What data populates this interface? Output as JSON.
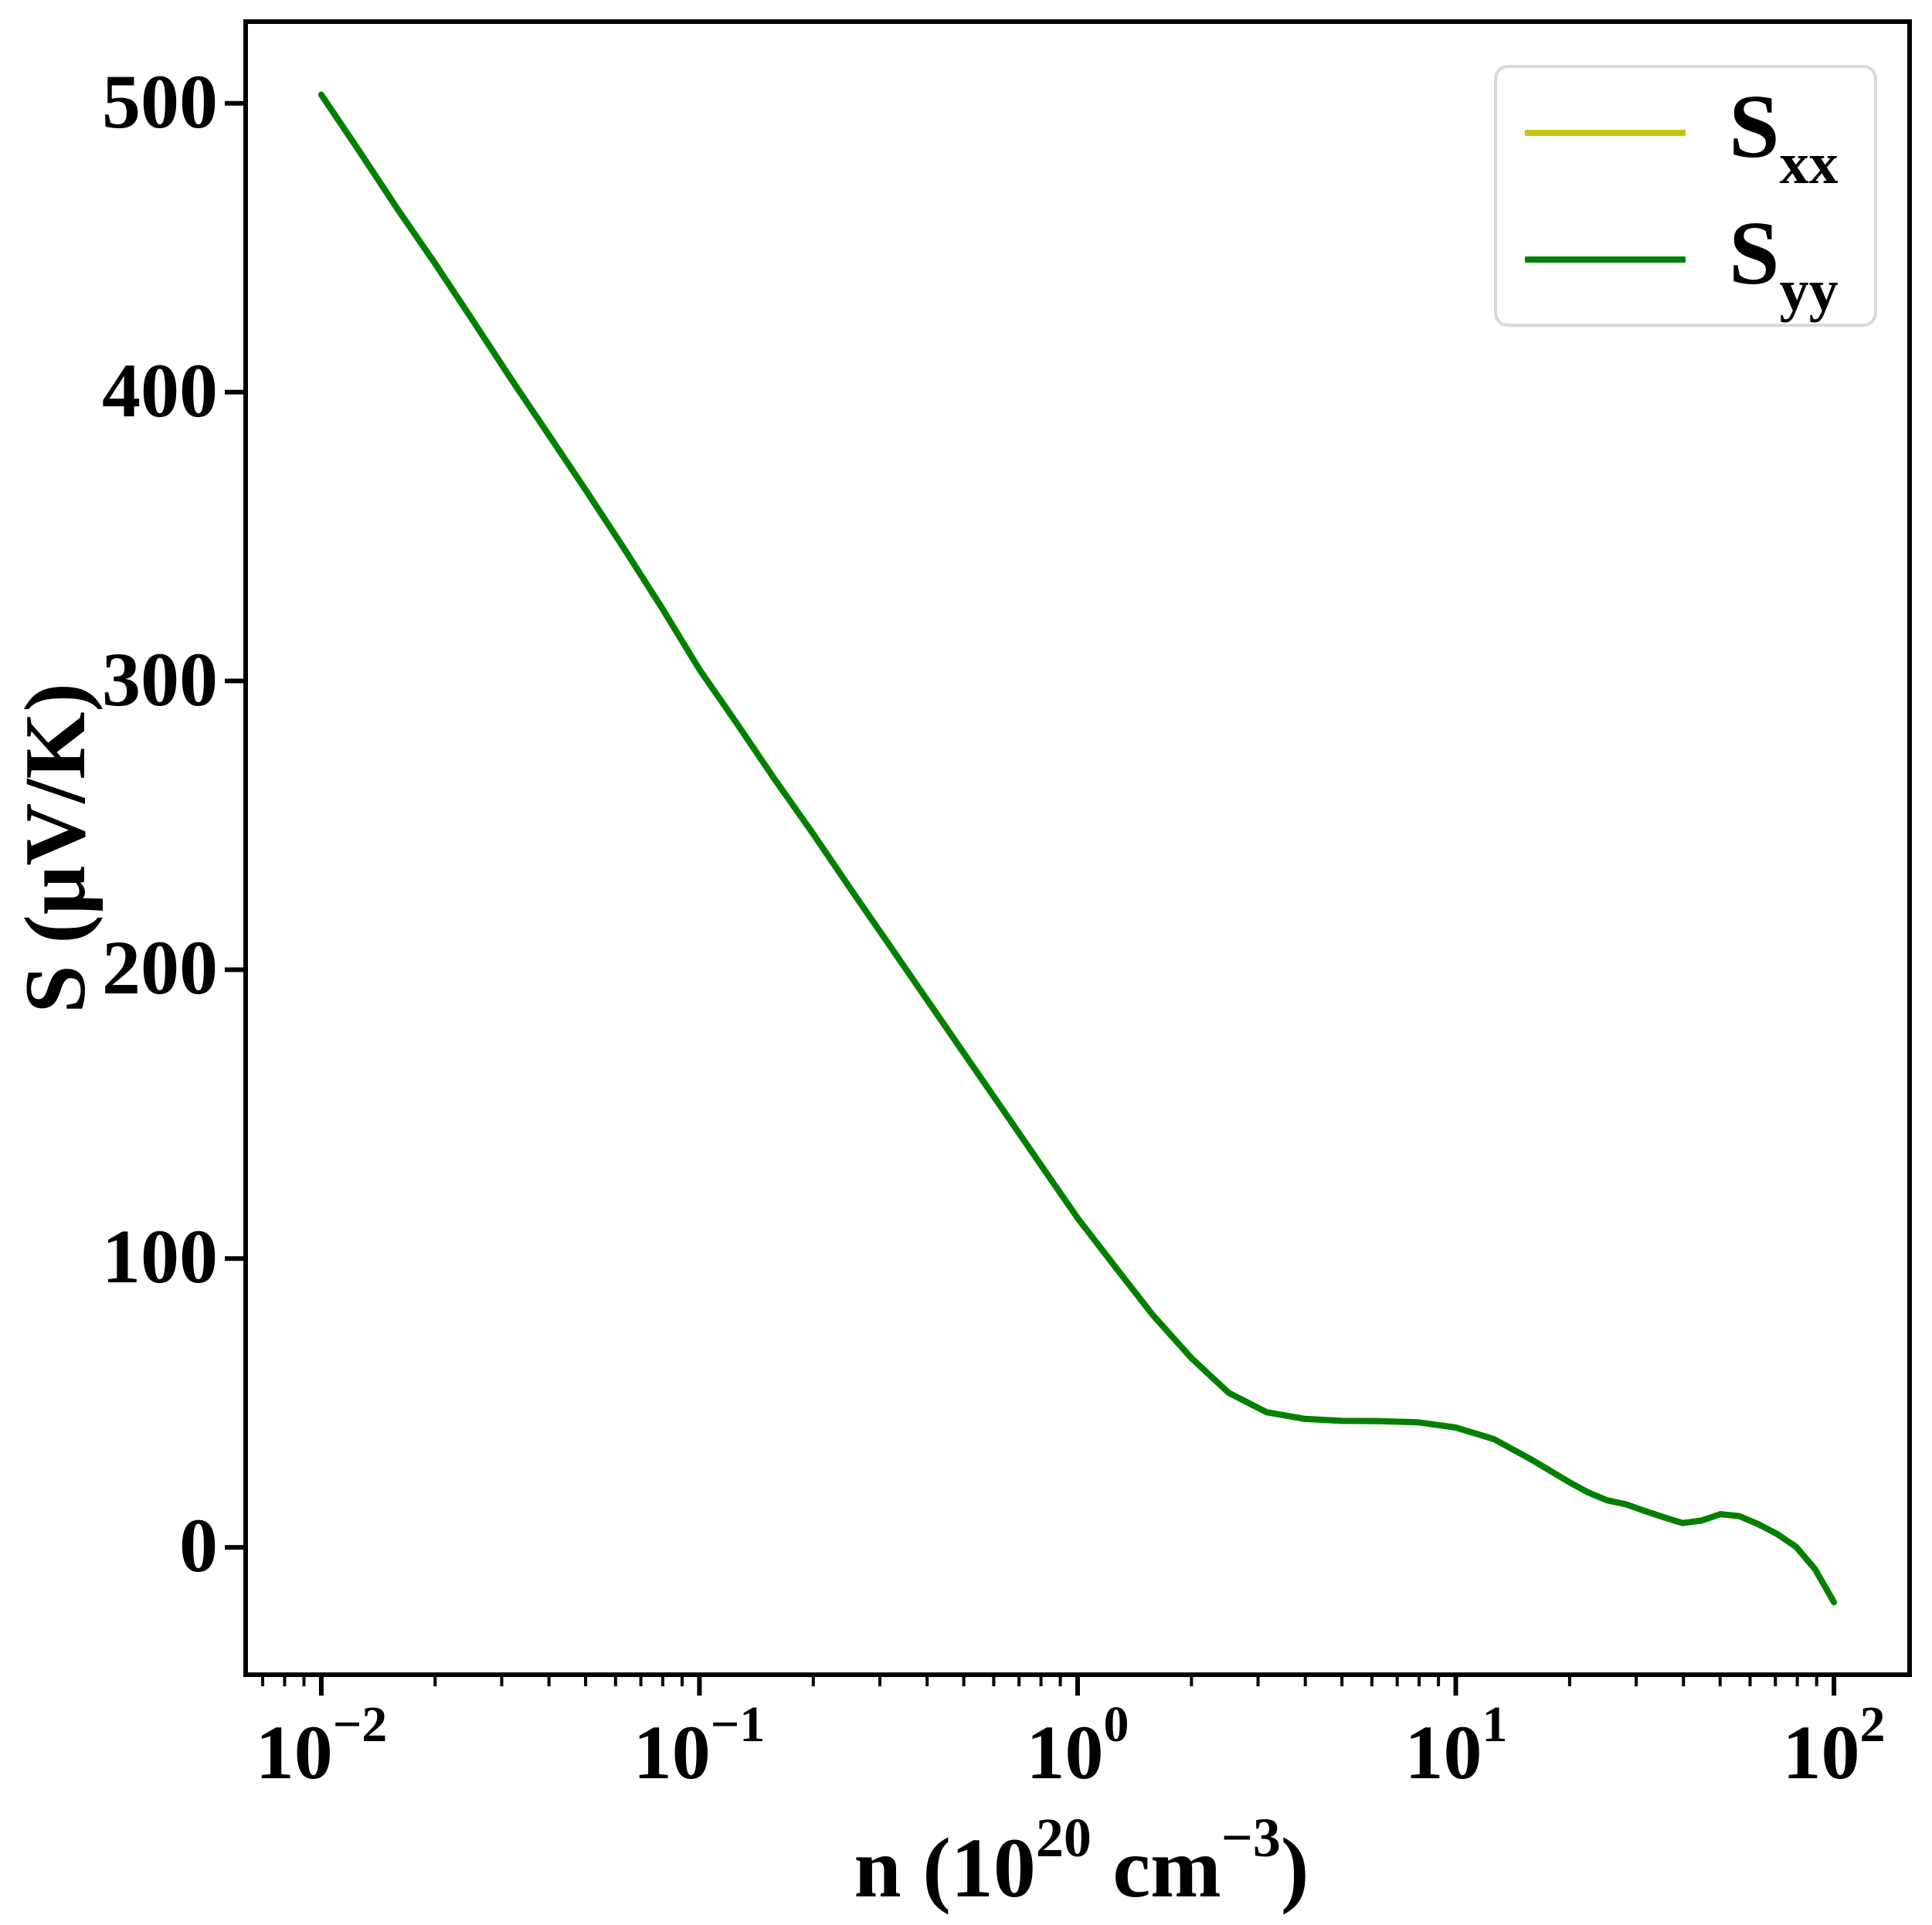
{
  "chart_data": {
    "type": "line",
    "xscale": "log",
    "yscale": "linear",
    "title": "",
    "grid": false,
    "xlabel_text": "n (10^20 cm^-3)",
    "xlabel_parts": {
      "prefix": "n (10",
      "exp1": "20",
      "mid": " cm",
      "exp2": "−3",
      "suffix": ")"
    },
    "ylabel": "S (μV/K)",
    "xlim": [
      0.00631,
      158.5
    ],
    "ylim": [
      -44.1,
      528.3
    ],
    "x_major_ticks": {
      "values": [
        0.01,
        0.1,
        1,
        10,
        100
      ],
      "base": "10",
      "exponents": [
        "−2",
        "−1",
        "0",
        "1",
        "2"
      ]
    },
    "y_major_ticks": {
      "values": [
        0,
        100,
        200,
        300,
        400,
        500
      ],
      "labels": [
        "0",
        "100",
        "200",
        "300",
        "400",
        "500"
      ]
    },
    "legend_position": "upper right",
    "x": [
      0.01,
      0.0126,
      0.0158,
      0.02,
      0.0251,
      0.0316,
      0.0398,
      0.0501,
      0.0631,
      0.0794,
      0.1,
      0.126,
      0.158,
      0.2,
      0.251,
      0.316,
      0.398,
      0.501,
      0.631,
      0.794,
      1.0,
      1.26,
      1.58,
      2.0,
      2.51,
      3.16,
      3.98,
      5.01,
      6.31,
      7.94,
      10.0,
      12.6,
      15.8,
      20.0,
      22.4,
      25.1,
      28.2,
      31.6,
      35.5,
      39.8,
      44.7,
      50.1,
      56.2,
      63.1,
      70.8,
      79.4,
      89.1,
      100.0
    ],
    "series": [
      {
        "name": "S_xx",
        "label_base": "S",
        "label_sub": "xx",
        "color": "#c8c10d",
        "values": [
          503,
          483.5,
          464,
          444.5,
          425,
          405,
          385.5,
          366,
          346,
          325.5,
          304,
          285,
          266,
          247,
          228,
          209,
          190,
          171,
          152,
          133,
          114,
          97,
          80.5,
          65.5,
          53.5,
          46.8,
          44.5,
          43.8,
          43.7,
          43.3,
          41.5,
          37.5,
          30.5,
          22.5,
          19.0,
          16.3,
          14.9,
          12.6,
          10.4,
          8.4,
          9.3,
          11.5,
          10.8,
          8.0,
          4.6,
          0.2,
          -7.5,
          -19
        ]
      },
      {
        "name": "S_yy",
        "label_base": "S",
        "label_sub": "yy",
        "color": "#008000",
        "values": [
          503,
          483.5,
          464,
          444.5,
          425,
          405,
          385.5,
          366,
          346,
          325.5,
          304,
          285,
          266,
          247,
          228,
          209,
          190,
          171,
          152,
          133,
          114,
          97,
          80.5,
          65.5,
          53.5,
          46.8,
          44.5,
          43.8,
          43.7,
          43.3,
          41.5,
          37.5,
          30.5,
          22.5,
          19.0,
          16.3,
          14.9,
          12.6,
          10.4,
          8.4,
          9.3,
          11.5,
          10.8,
          8.0,
          4.6,
          0.2,
          -7.5,
          -19
        ]
      }
    ]
  }
}
